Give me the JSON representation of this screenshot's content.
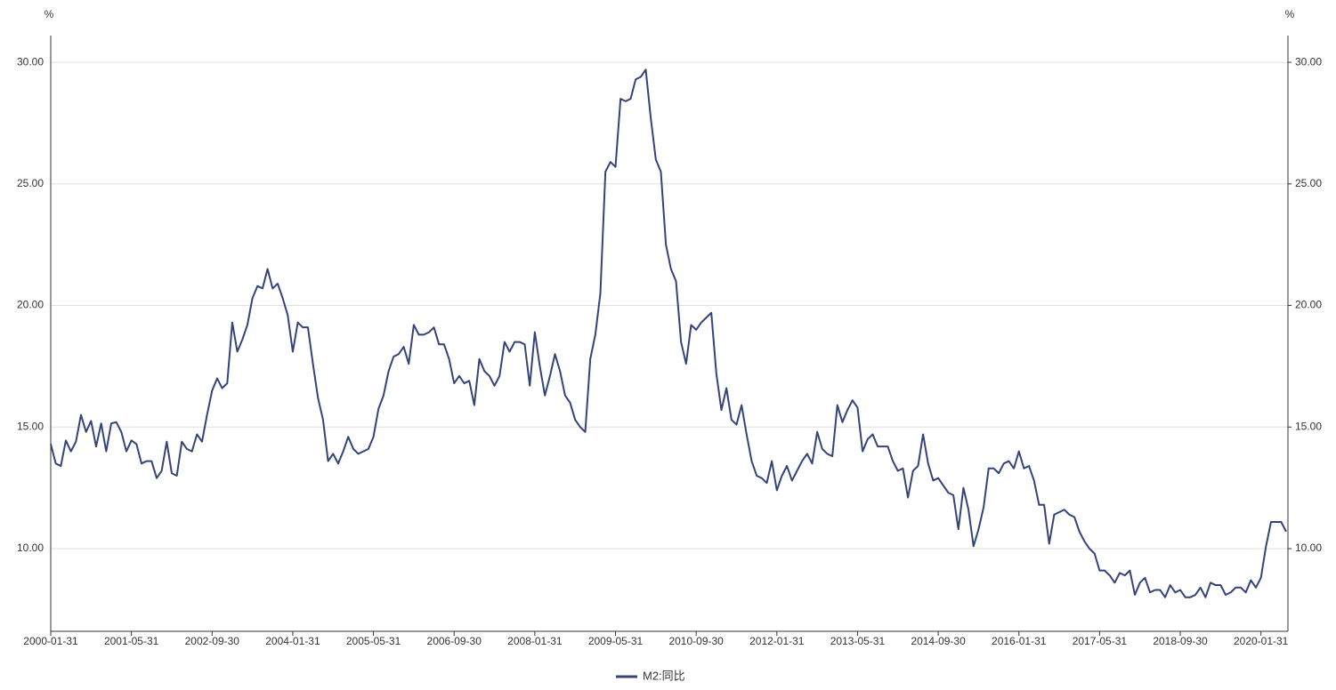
{
  "chart_data": {
    "type": "line",
    "ylabel": "%",
    "y2label": "%",
    "categories": [
      "2000-01-31",
      null,
      null,
      null,
      null,
      null,
      null,
      null,
      null,
      null,
      null,
      null,
      null,
      null,
      null,
      null,
      "2001-05-31",
      null,
      null,
      null,
      null,
      null,
      null,
      null,
      null,
      null,
      null,
      null,
      null,
      null,
      null,
      null,
      "2002-09-30",
      null,
      null,
      null,
      null,
      null,
      null,
      null,
      null,
      null,
      null,
      null,
      null,
      null,
      null,
      null,
      "2004-01-31",
      null,
      null,
      null,
      null,
      null,
      null,
      null,
      null,
      null,
      null,
      null,
      null,
      null,
      null,
      null,
      "2005-05-31",
      null,
      null,
      null,
      null,
      null,
      null,
      null,
      null,
      null,
      null,
      null,
      null,
      null,
      null,
      null,
      "2006-09-30",
      null,
      null,
      null,
      null,
      null,
      null,
      null,
      null,
      null,
      null,
      null,
      null,
      null,
      null,
      null,
      "2008-01-31",
      null,
      null,
      null,
      null,
      null,
      null,
      null,
      null,
      null,
      null,
      null,
      null,
      null,
      null,
      null,
      "2009-05-31",
      null,
      null,
      null,
      null,
      null,
      null,
      null,
      null,
      null,
      null,
      null,
      null,
      null,
      null,
      null,
      "2010-09-30",
      null,
      null,
      null,
      null,
      null,
      null,
      null,
      null,
      null,
      null,
      null,
      null,
      null,
      null,
      null,
      "2012-01-31",
      null,
      null,
      null,
      null,
      null,
      null,
      null,
      null,
      null,
      null,
      null,
      null,
      null,
      null,
      null,
      "2013-05-31",
      null,
      null,
      null,
      null,
      null,
      null,
      null,
      null,
      null,
      null,
      null,
      null,
      null,
      null,
      null,
      "2014-09-30",
      null,
      null,
      null,
      null,
      null,
      null,
      null,
      null,
      null,
      null,
      null,
      null,
      null,
      null,
      null,
      "2016-01-31",
      null,
      null,
      null,
      null,
      null,
      null,
      null,
      null,
      null,
      null,
      null,
      null,
      null,
      null,
      null,
      "2017-05-31",
      null,
      null,
      null,
      null,
      null,
      null,
      null,
      null,
      null,
      null,
      null,
      null,
      null,
      null,
      null,
      "2018-09-30",
      null,
      null,
      null,
      null,
      null,
      null,
      null,
      null,
      null,
      null,
      null,
      null,
      null,
      null,
      null,
      "2020-01-31",
      null,
      null,
      null,
      null,
      null
    ],
    "series": [
      {
        "name": "M2:同比",
        "color": "#34437a",
        "values": [
          14.3,
          13.5,
          13.4,
          14.45,
          14.0,
          14.4,
          15.5,
          14.8,
          15.25,
          14.2,
          15.15,
          14.0,
          15.15,
          15.2,
          14.8,
          14.0,
          14.45,
          14.3,
          13.5,
          13.6,
          13.6,
          12.9,
          13.2,
          14.4,
          13.1,
          13.0,
          14.4,
          14.1,
          14.0,
          14.7,
          14.4,
          15.5,
          16.5,
          17.0,
          16.6,
          16.8,
          19.3,
          18.1,
          18.6,
          19.2,
          20.3,
          20.8,
          20.7,
          21.5,
          20.7,
          20.9,
          20.3,
          19.6,
          18.1,
          19.3,
          19.1,
          19.1,
          17.6,
          16.2,
          15.3,
          13.6,
          13.9,
          13.5,
          14.0,
          14.6,
          14.1,
          13.9,
          14.0,
          14.1,
          14.6,
          15.75,
          16.3,
          17.3,
          17.9,
          18.0,
          18.3,
          17.6,
          19.2,
          18.8,
          18.8,
          18.9,
          19.1,
          18.4,
          18.4,
          17.8,
          16.8,
          17.1,
          16.8,
          16.9,
          15.9,
          17.8,
          17.3,
          17.1,
          16.7,
          17.1,
          18.5,
          18.1,
          18.5,
          18.5,
          18.4,
          16.7,
          18.9,
          17.5,
          16.3,
          17.1,
          18.0,
          17.3,
          16.3,
          16.0,
          15.3,
          15.0,
          14.8,
          17.8,
          18.8,
          20.5,
          25.5,
          25.9,
          25.7,
          28.5,
          28.4,
          28.5,
          29.3,
          29.4,
          29.7,
          27.7,
          26.0,
          25.5,
          22.5,
          21.5,
          21.0,
          18.5,
          17.6,
          19.2,
          19.0,
          19.3,
          19.5,
          19.7,
          17.2,
          15.7,
          16.6,
          15.3,
          15.1,
          15.9,
          14.7,
          13.6,
          13.0,
          12.9,
          12.7,
          13.6,
          12.4,
          13.0,
          13.4,
          12.8,
          13.2,
          13.6,
          13.9,
          13.5,
          14.8,
          14.1,
          13.9,
          13.8,
          15.9,
          15.2,
          15.7,
          16.1,
          15.8,
          14.0,
          14.5,
          14.7,
          14.2,
          14.2,
          14.2,
          13.6,
          13.2,
          13.3,
          12.1,
          13.2,
          13.4,
          14.7,
          13.5,
          12.8,
          12.9,
          12.6,
          12.3,
          12.2,
          10.8,
          12.5,
          11.6,
          10.1,
          10.8,
          11.7,
          13.3,
          13.3,
          13.1,
          13.5,
          13.6,
          13.3,
          14.0,
          13.3,
          13.4,
          12.8,
          11.8,
          11.8,
          10.2,
          11.4,
          11.5,
          11.6,
          11.4,
          11.3,
          10.7,
          10.3,
          10.0,
          9.8,
          9.1,
          9.1,
          8.9,
          8.6,
          9.0,
          8.9,
          9.1,
          8.1,
          8.6,
          8.8,
          8.2,
          8.3,
          8.3,
          8.0,
          8.5,
          8.2,
          8.3,
          8.0,
          8.0,
          8.1,
          8.4,
          8.0,
          8.6,
          8.5,
          8.5,
          8.1,
          8.2,
          8.4,
          8.4,
          8.2,
          8.7,
          8.4,
          8.8,
          10.1,
          11.1,
          11.1,
          11.1,
          10.7
        ]
      }
    ],
    "ylim": [
      6.6,
      31.1
    ],
    "yticks": [
      {
        "value": 10,
        "label": "10.00"
      },
      {
        "value": 15,
        "label": "15.00"
      },
      {
        "value": 20,
        "label": "20.00"
      },
      {
        "value": 25,
        "label": "25.00"
      },
      {
        "value": 30,
        "label": "30.00"
      }
    ],
    "y2lim": [
      6.6,
      31.1
    ],
    "y2ticks": [
      {
        "value": 10,
        "label": "10.00"
      },
      {
        "value": 15,
        "label": "15.00"
      },
      {
        "value": 20,
        "label": "20.00"
      },
      {
        "value": 25,
        "label": "25.00"
      },
      {
        "value": 30,
        "label": "30.00"
      }
    ],
    "grid": true,
    "legend": "bottom"
  }
}
